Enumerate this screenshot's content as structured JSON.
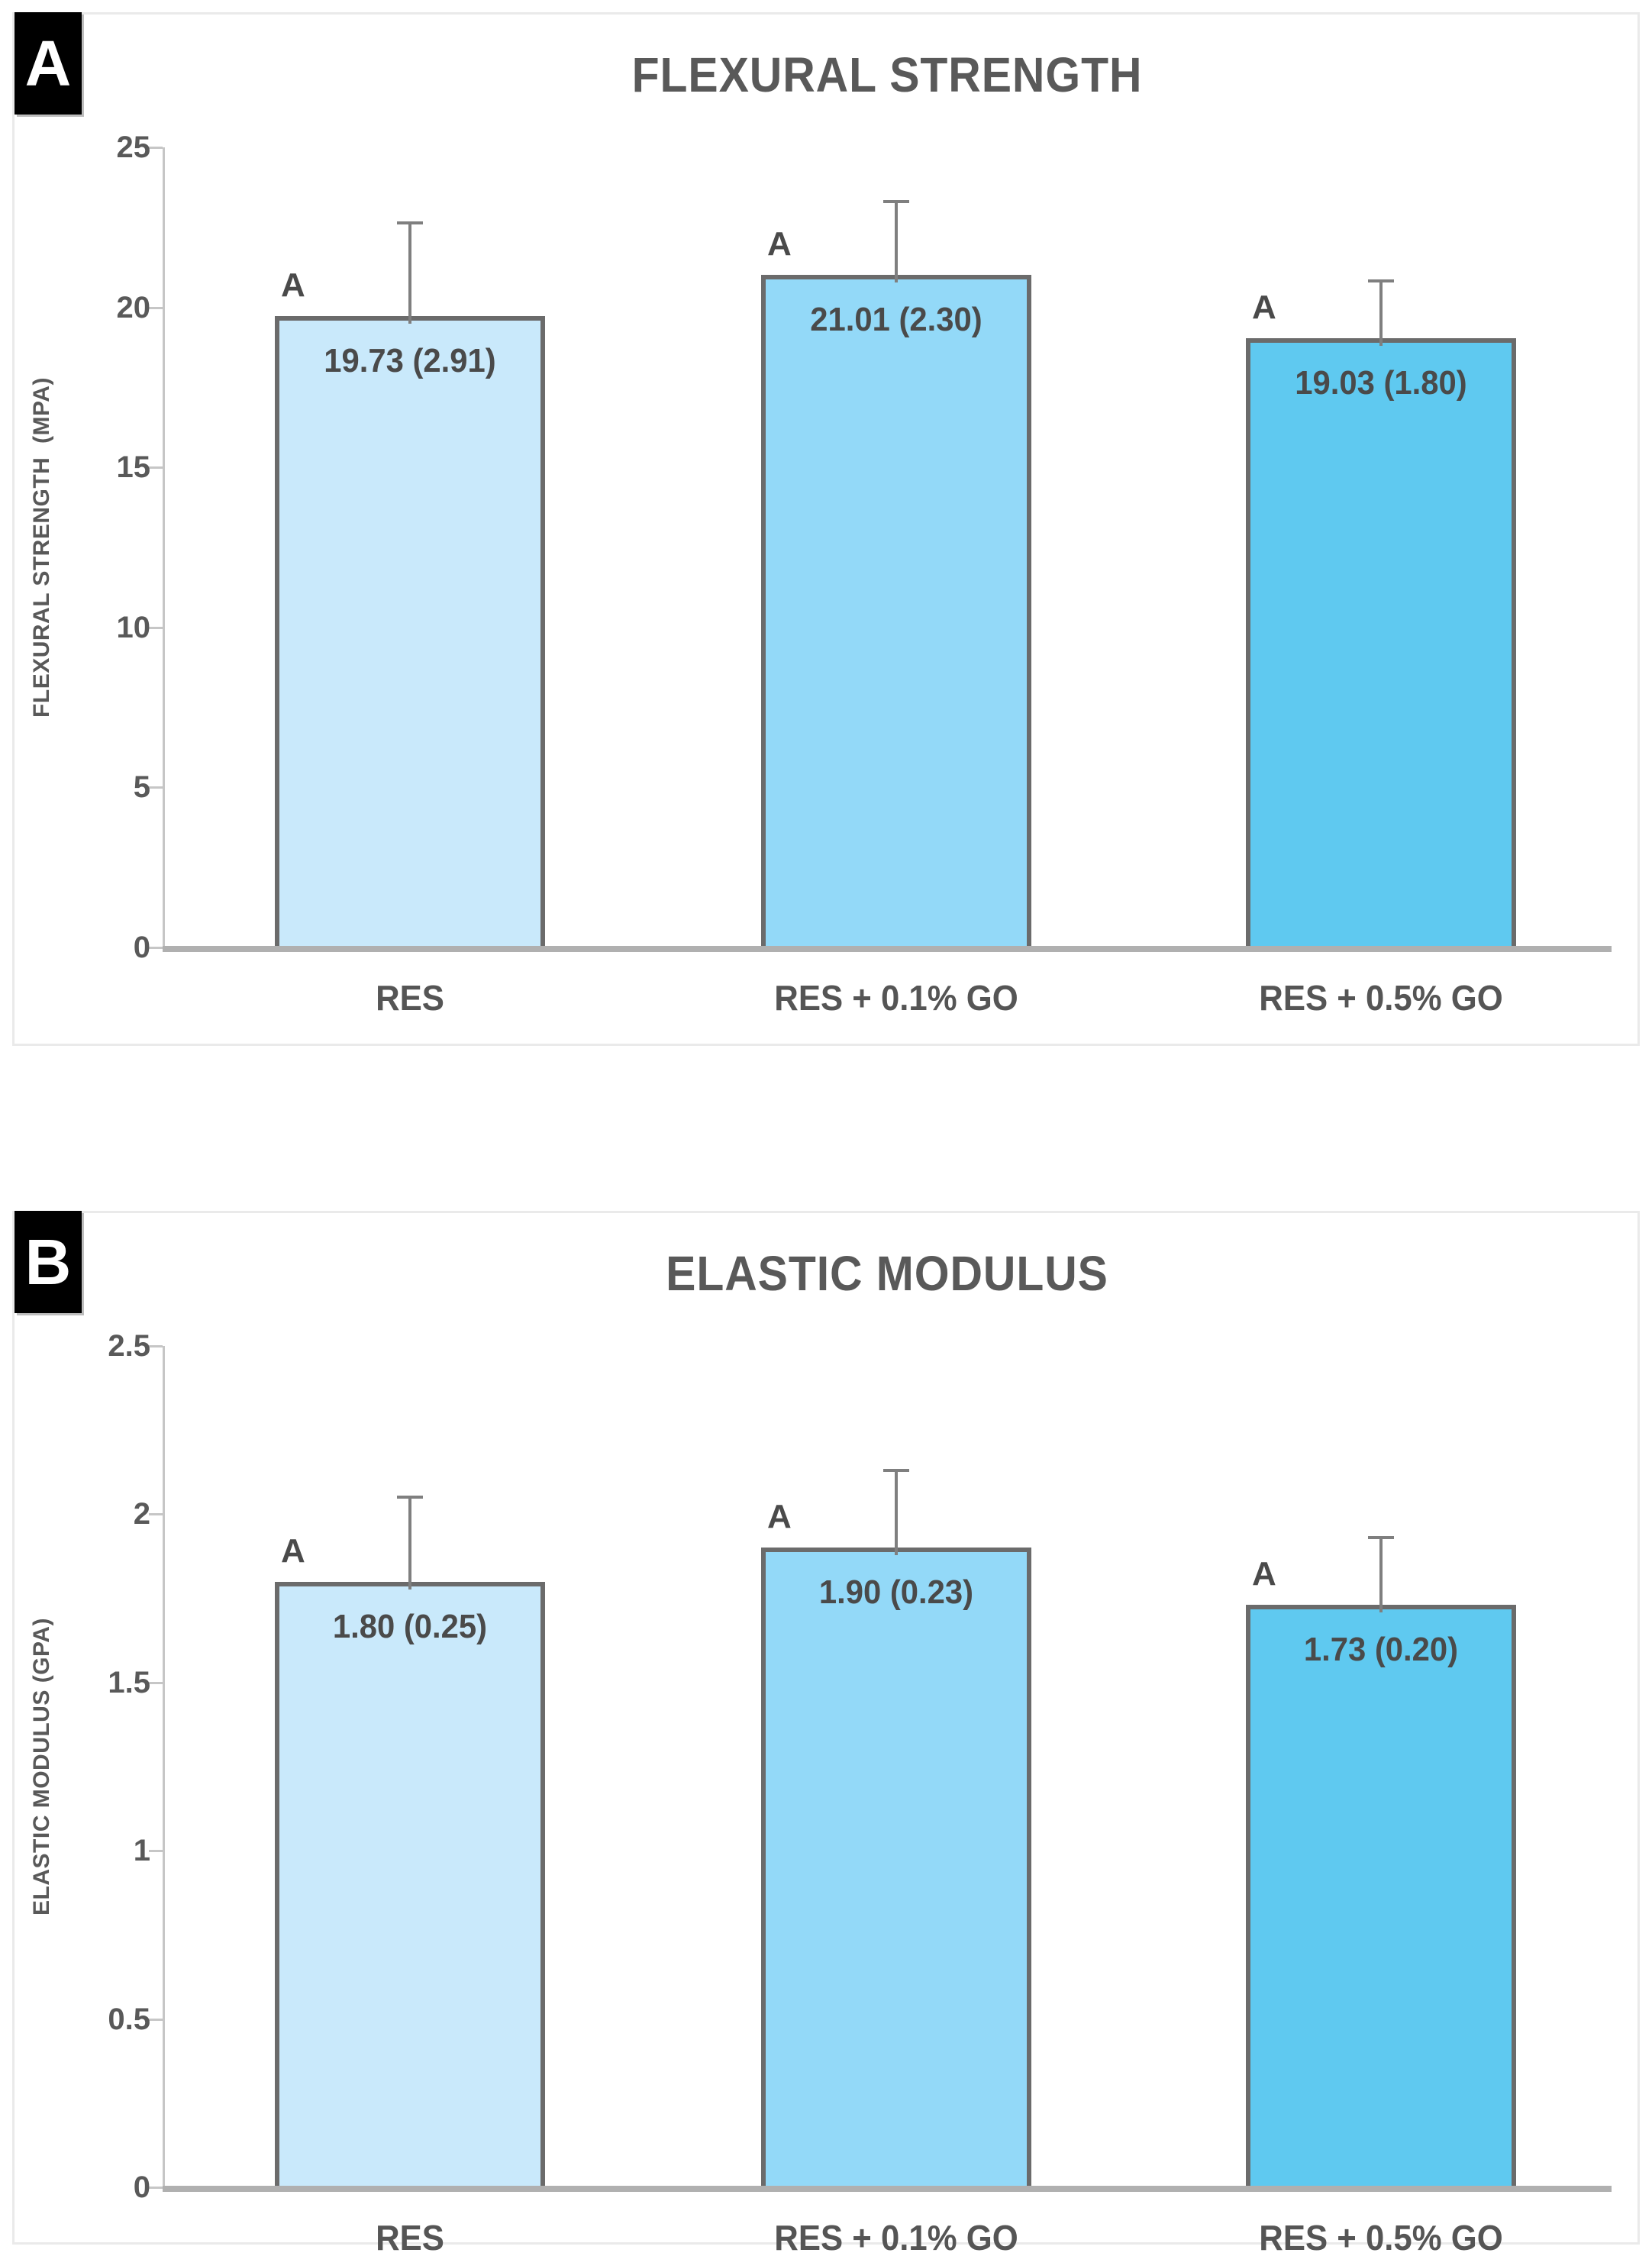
{
  "page": {
    "background": "#ffffff"
  },
  "panels": [
    {
      "corner_label": "A"
    },
    {
      "corner_label": "B"
    }
  ],
  "chart_data": [
    {
      "type": "bar",
      "title": "FLEXURAL STRENGTH",
      "ylabel": "FLEXURAL STRENGTH  (MPA)",
      "xlabel": "",
      "categories": [
        "RES",
        "RES + 0.1% GO",
        "RES + 0.5% GO"
      ],
      "values": [
        19.73,
        21.01,
        19.03
      ],
      "errors": [
        2.91,
        2.3,
        1.8
      ],
      "bar_labels": [
        "19.73 (2.91)",
        "21.01 (2.30)",
        "19.03 (1.80)"
      ],
      "sig_letters": [
        "A",
        "A",
        "A"
      ],
      "ylim": [
        0,
        25
      ],
      "yticks": [
        0,
        5,
        10,
        15,
        20,
        25
      ],
      "ytick_labels": [
        "0",
        "5",
        "10",
        "15",
        "20",
        "25"
      ],
      "bar_colors": [
        "#c9e9fb",
        "#93d9f8",
        "#5fc9f0"
      ],
      "bar_border_color": "#6b6b6b",
      "error_bar_color": "#7f7f7f",
      "grid": "off",
      "legend": "none"
    },
    {
      "type": "bar",
      "title": "ELASTIC MODULUS",
      "ylabel": "ELASTIC MODULUS (GPA)",
      "xlabel": "",
      "categories": [
        "RES",
        "RES + 0.1% GO",
        "RES + 0.5% GO"
      ],
      "values": [
        1.8,
        1.9,
        1.73
      ],
      "errors": [
        0.25,
        0.23,
        0.2
      ],
      "bar_labels": [
        "1.80 (0.25)",
        "1.90 (0.23)",
        "1.73 (0.20)"
      ],
      "sig_letters": [
        "A",
        "A",
        "A"
      ],
      "ylim": [
        0,
        2.5
      ],
      "yticks": [
        0,
        0.5,
        1,
        1.5,
        2,
        2.5
      ],
      "ytick_labels": [
        "0",
        "0.5",
        "1",
        "1.5",
        "2",
        "2.5"
      ],
      "bar_colors": [
        "#c9e9fb",
        "#93d9f8",
        "#5fc9f0"
      ],
      "bar_border_color": "#6b6b6b",
      "error_bar_color": "#7f7f7f",
      "grid": "off",
      "legend": "none"
    }
  ]
}
